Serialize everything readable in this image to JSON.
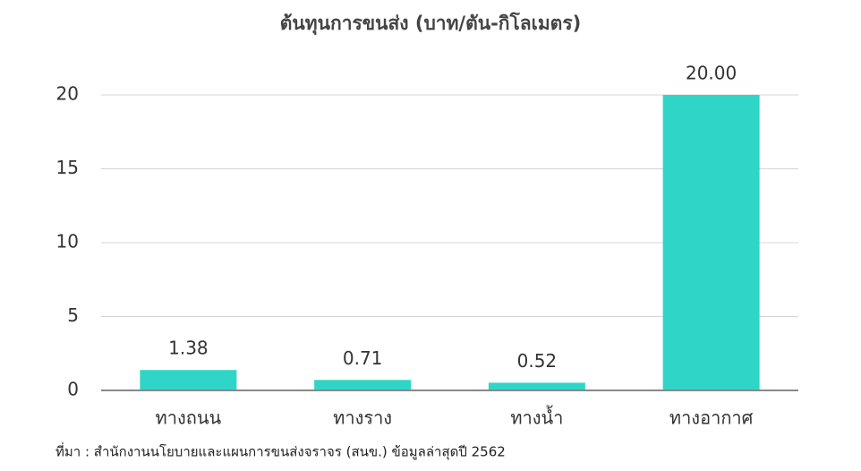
{
  "chart_data": {
    "type": "bar",
    "title": "ต้นทุนการขนส่ง (บาท/ตัน-กิโลเมตร)",
    "categories": [
      "ทางถนน",
      "ทางราง",
      "ทางน้ำ",
      "ทางอากาศ"
    ],
    "values": [
      1.38,
      0.71,
      0.52,
      20
    ],
    "value_labels": [
      "1.38",
      "0.71",
      "0.52",
      "20.00"
    ],
    "color": "#2fd6c8",
    "ylim": [
      0,
      20
    ],
    "yticks": [
      0,
      5,
      10,
      15,
      20
    ],
    "grid": true,
    "source": "ที่มา : สำนักงานนโยบายและแผนการขนส่งจราจร (สนข.) ข้อมูลล่าสุดปี 2562"
  }
}
